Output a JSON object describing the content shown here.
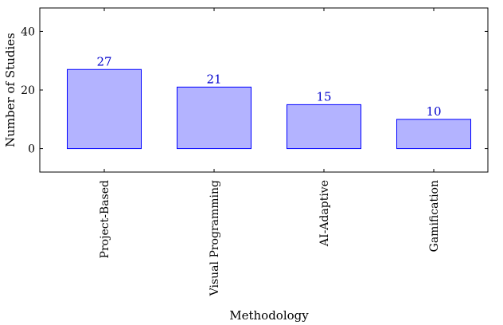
{
  "chart_data": {
    "type": "bar",
    "categories": [
      "Project-Based",
      "Visual Programming",
      "AI-Adaptive",
      "Gamification"
    ],
    "values": [
      27,
      21,
      15,
      10
    ],
    "title": "",
    "xlabel": "Methodology",
    "ylabel": "Number of Studies",
    "ylim": [
      -8,
      48
    ],
    "yticks": [
      0,
      20,
      40
    ],
    "grid": false,
    "data_labels": true
  },
  "colors": {
    "bar_fill": "#b3b3ff",
    "bar_stroke": "#0000ff",
    "label_color": "#0000cc",
    "axis_color": "#000000"
  }
}
